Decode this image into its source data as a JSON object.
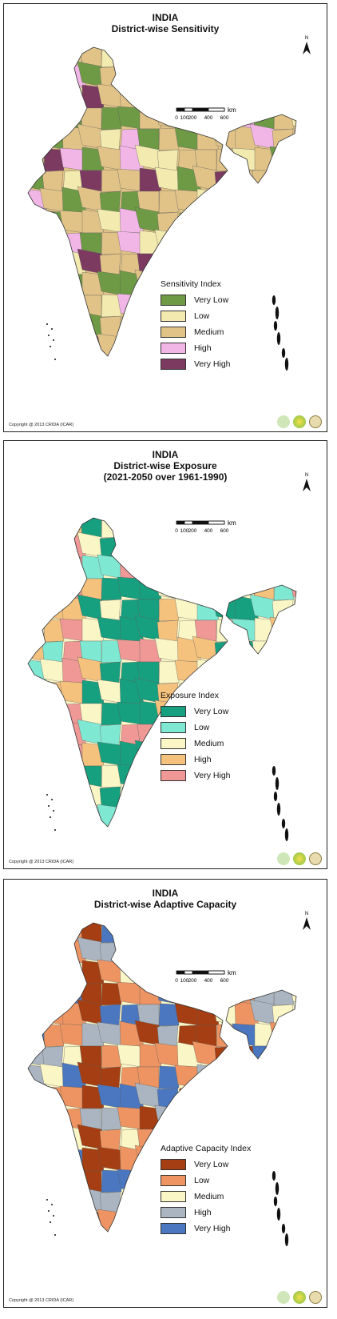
{
  "panels": [
    {
      "title_line1": "INDIA",
      "title_line2": "District-wise Sensitivity",
      "title_line3": "",
      "legend": {
        "title": "Sensitivity Index",
        "items": [
          {
            "label": "Very Low",
            "color": "#6e9a45"
          },
          {
            "label": "Low",
            "color": "#f3eab0"
          },
          {
            "label": "Medium",
            "color": "#e1c387"
          },
          {
            "label": "High",
            "color": "#f2b6e6"
          },
          {
            "label": "Very High",
            "color": "#7d3a60"
          }
        ]
      },
      "copyright": "Copyright @ 2013 CRIDA (ICAR)"
    },
    {
      "title_line1": "INDIA",
      "title_line2": "District-wise Exposure",
      "title_line3": "(2021-2050 over 1961-1990)",
      "legend": {
        "title": "Exposure Index",
        "items": [
          {
            "label": "Very Low",
            "color": "#16a07f"
          },
          {
            "label": "Low",
            "color": "#7fe8d2"
          },
          {
            "label": "Medium",
            "color": "#fbf6c6"
          },
          {
            "label": "High",
            "color": "#f5c27e"
          },
          {
            "label": "Very High",
            "color": "#ef9895"
          }
        ]
      },
      "copyright": "Copyright @ 2013 CRIDA (ICAR)"
    },
    {
      "title_line1": "INDIA",
      "title_line2": "District-wise Adaptive Capacity",
      "title_line3": "",
      "legend": {
        "title": "Adaptive Capacity Index",
        "items": [
          {
            "label": "Very Low",
            "color": "#a53e12"
          },
          {
            "label": "Low",
            "color": "#ee9462"
          },
          {
            "label": "Medium",
            "color": "#fbf6c6"
          },
          {
            "label": "High",
            "color": "#aab5c1"
          },
          {
            "label": "Very High",
            "color": "#4a77c0"
          }
        ]
      },
      "copyright": "Copyright @ 2013 CRIDA (ICAR)"
    }
  ],
  "scalebar": {
    "ticks": [
      "0",
      "100",
      "200",
      "400",
      "600"
    ],
    "unit": "km"
  },
  "north_label": "N"
}
